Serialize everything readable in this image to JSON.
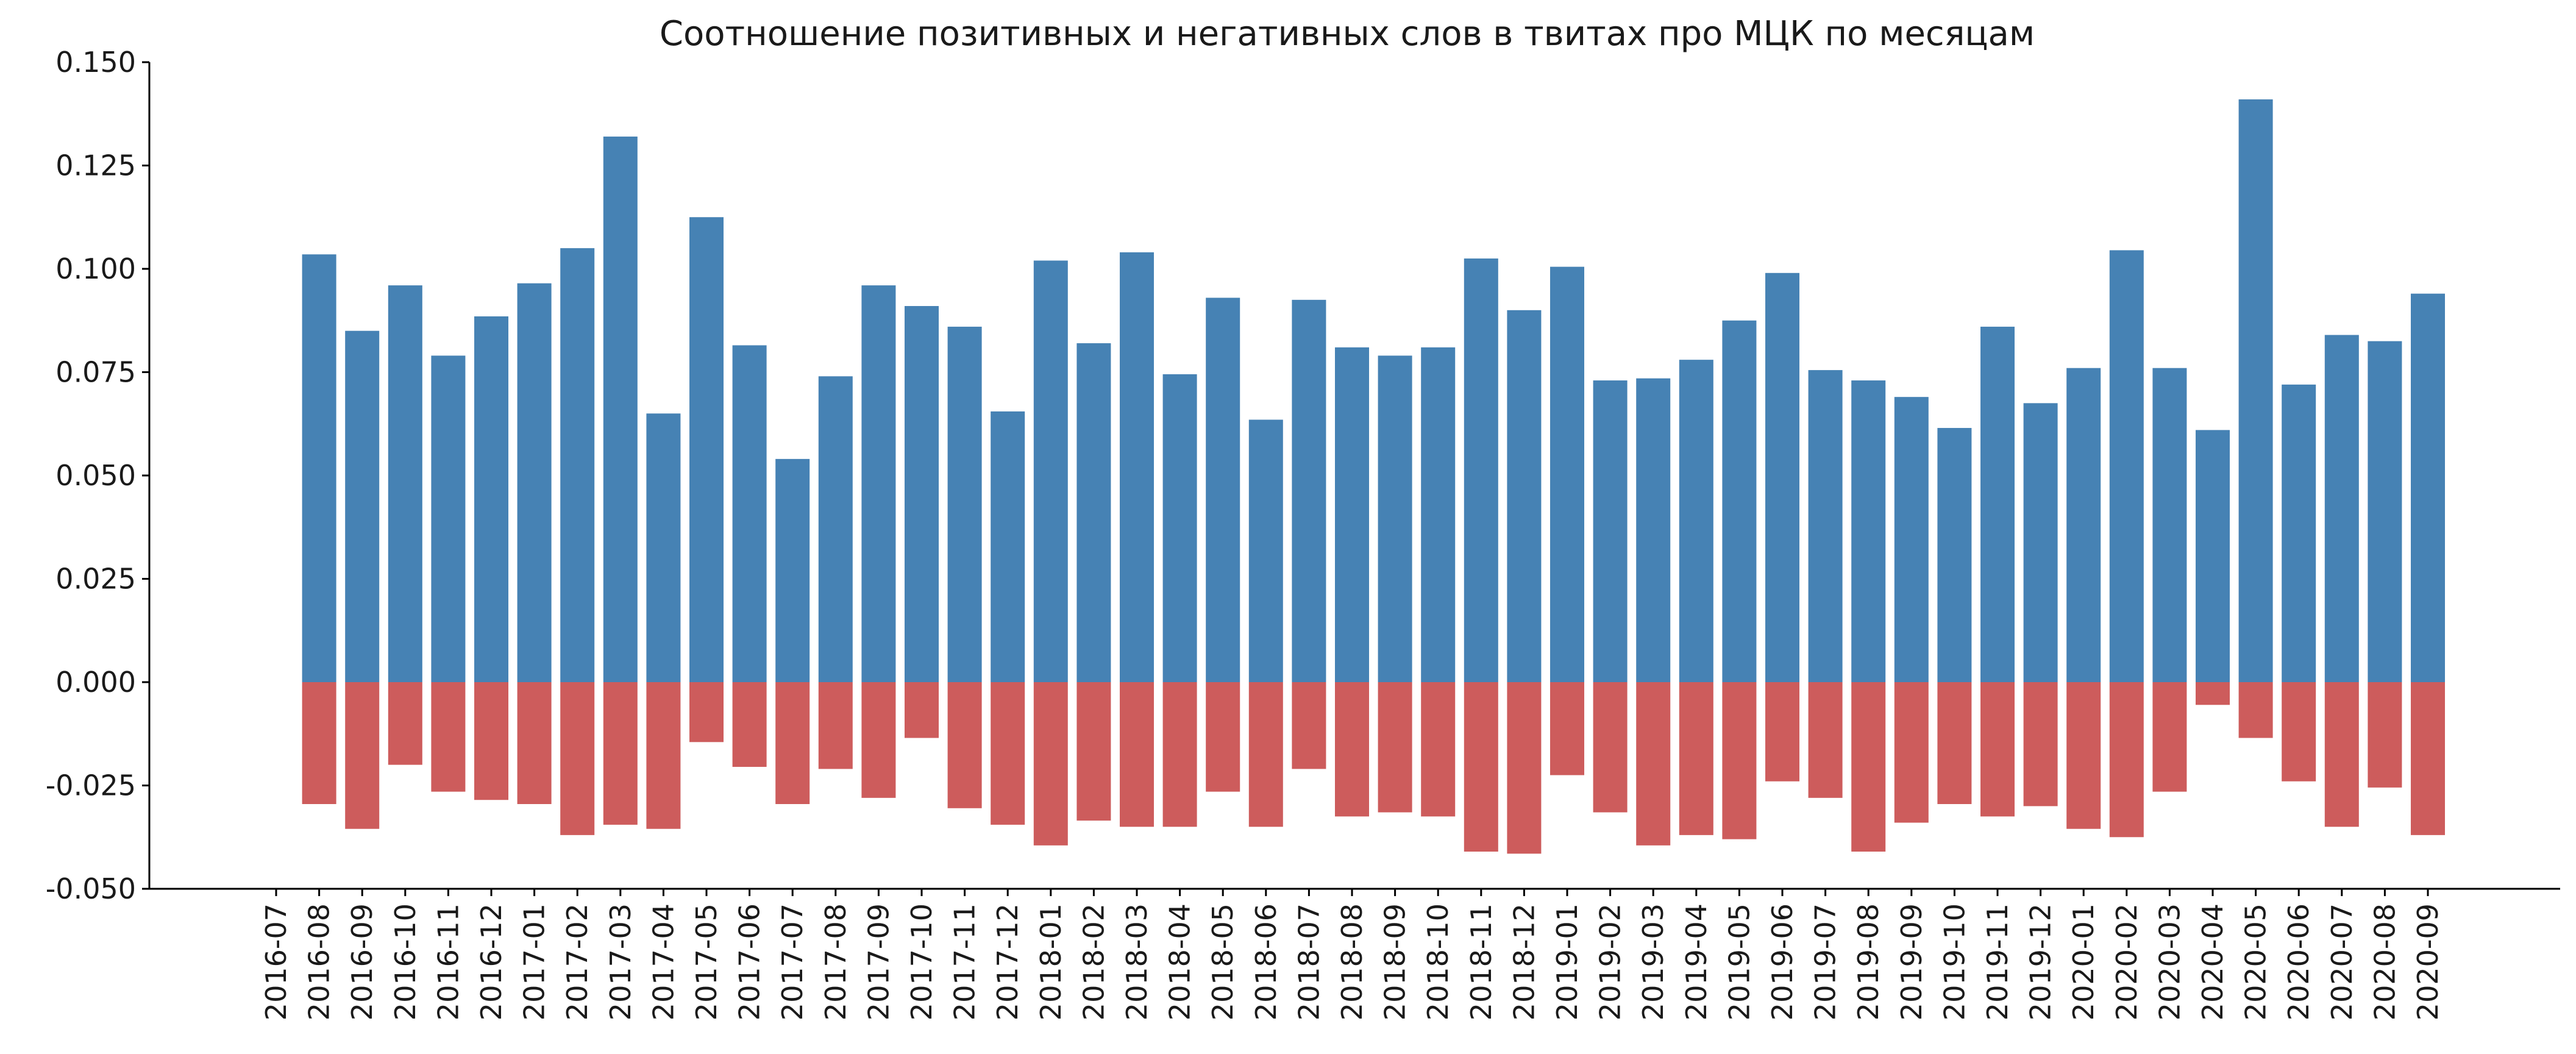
{
  "chart_data": {
    "type": "bar",
    "title": "Соотношение позитивных и негативных слов в твитах про МЦК по месяцам",
    "xlabel": "",
    "ylabel": "",
    "ylim": [
      -0.05,
      0.15
    ],
    "yticks": [
      "-0.050",
      "-0.025",
      "0.000",
      "0.025",
      "0.050",
      "0.075",
      "0.100",
      "0.125",
      "0.150"
    ],
    "grid": false,
    "colors": {
      "positive": "#4682b4",
      "negative": "#cd5c5c"
    },
    "categories": [
      "2016-07",
      "2016-08",
      "2016-09",
      "2016-10",
      "2016-11",
      "2016-12",
      "2017-01",
      "2017-02",
      "2017-03",
      "2017-04",
      "2017-05",
      "2017-06",
      "2017-07",
      "2017-08",
      "2017-09",
      "2017-10",
      "2017-11",
      "2017-12",
      "2018-01",
      "2018-02",
      "2018-03",
      "2018-04",
      "2018-05",
      "2018-06",
      "2018-07",
      "2018-08",
      "2018-09",
      "2018-10",
      "2018-11",
      "2018-12",
      "2019-01",
      "2019-02",
      "2019-03",
      "2019-04",
      "2019-05",
      "2019-06",
      "2019-07",
      "2019-08",
      "2019-09",
      "2019-10",
      "2019-11",
      "2019-12",
      "2020-01",
      "2020-02",
      "2020-03",
      "2020-04",
      "2020-05",
      "2020-06",
      "2020-07",
      "2020-08",
      "2020-09"
    ],
    "series": [
      {
        "values": [
          null,
          0.1035,
          0.085,
          0.096,
          0.079,
          0.0885,
          0.0965,
          0.105,
          0.132,
          0.065,
          0.1125,
          0.0815,
          0.054,
          0.074,
          0.096,
          0.091,
          0.086,
          0.0655,
          0.102,
          0.082,
          0.104,
          0.0745,
          0.093,
          0.0635,
          0.0925,
          0.081,
          0.079,
          0.081,
          0.1025,
          0.09,
          0.1005,
          0.073,
          0.0735,
          0.078,
          0.0875,
          0.099,
          0.0755,
          0.073,
          0.069,
          0.0615,
          0.086,
          0.0675,
          0.076,
          0.1045,
          0.076,
          0.061,
          0.141,
          0.072,
          0.084,
          0.0825,
          0.094
        ]
      },
      {
        "values": [
          null,
          -0.0295,
          -0.0355,
          -0.02,
          -0.0265,
          -0.0285,
          -0.0295,
          -0.037,
          -0.0345,
          -0.0355,
          -0.0145,
          -0.0205,
          -0.0295,
          -0.021,
          -0.028,
          -0.0135,
          -0.0305,
          -0.0345,
          -0.0395,
          -0.0335,
          -0.035,
          -0.035,
          -0.0265,
          -0.035,
          -0.021,
          -0.0325,
          -0.0315,
          -0.0325,
          -0.041,
          -0.0415,
          -0.0225,
          -0.0315,
          -0.0395,
          -0.037,
          -0.038,
          -0.024,
          -0.028,
          -0.041,
          -0.034,
          -0.0295,
          -0.0325,
          -0.03,
          -0.0355,
          -0.0375,
          -0.0265,
          -0.0055,
          -0.0135,
          -0.024,
          -0.035,
          -0.0255,
          -0.037
        ]
      }
    ]
  }
}
